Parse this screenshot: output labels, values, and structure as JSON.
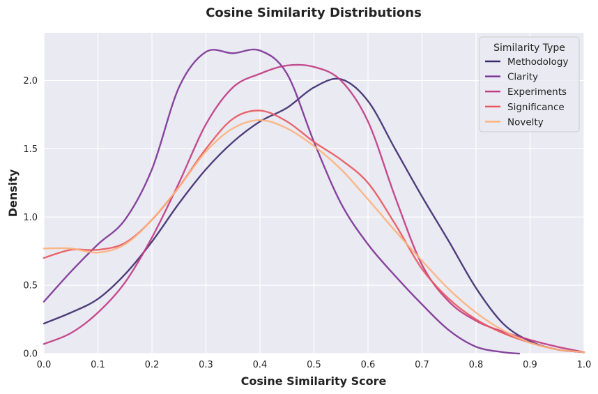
{
  "chart_data": {
    "type": "line",
    "title": "Cosine Similarity Distributions",
    "xlabel": "Cosine Similarity Score",
    "ylabel": "Density",
    "xlim": [
      0.0,
      1.0
    ],
    "ylim": [
      0.0,
      2.35
    ],
    "xticks": [
      "0.0",
      "0.1",
      "0.2",
      "0.3",
      "0.4",
      "0.5",
      "0.6",
      "0.7",
      "0.8",
      "0.9",
      "1.0"
    ],
    "xtick_values": [
      0.0,
      0.1,
      0.2,
      0.3,
      0.4,
      0.5,
      0.6,
      0.7,
      0.8,
      0.9,
      1.0
    ],
    "yticks": [
      "0.0",
      "0.5",
      "1.0",
      "1.5",
      "2.0"
    ],
    "ytick_values": [
      0.0,
      0.5,
      1.0,
      1.5,
      2.0
    ],
    "grid": true,
    "background": "#eaeaf2",
    "legend": {
      "title": "Similarity Type",
      "placement": "top-right"
    },
    "series": [
      {
        "name": "Methodology",
        "color": "#3d2a6e",
        "x": [
          0.0,
          0.05,
          0.1,
          0.15,
          0.2,
          0.25,
          0.3,
          0.35,
          0.4,
          0.45,
          0.5,
          0.55,
          0.6,
          0.65,
          0.7,
          0.75,
          0.8,
          0.85,
          0.9,
          0.95,
          1.0
        ],
        "y": [
          0.22,
          0.3,
          0.4,
          0.58,
          0.82,
          1.1,
          1.35,
          1.55,
          1.7,
          1.8,
          1.95,
          2.01,
          1.85,
          1.5,
          1.15,
          0.82,
          0.48,
          0.22,
          0.09,
          0.03,
          0.01
        ]
      },
      {
        "name": "Clarity",
        "color": "#7b3294",
        "x": [
          0.0,
          0.05,
          0.1,
          0.15,
          0.2,
          0.25,
          0.3,
          0.35,
          0.4,
          0.45,
          0.5,
          0.55,
          0.6,
          0.65,
          0.7,
          0.75,
          0.8,
          0.85,
          0.88
        ],
        "y": [
          0.38,
          0.6,
          0.8,
          0.98,
          1.35,
          1.95,
          2.21,
          2.2,
          2.22,
          2.05,
          1.55,
          1.1,
          0.8,
          0.57,
          0.36,
          0.17,
          0.05,
          0.01,
          0.0
        ]
      },
      {
        "name": "Experiments",
        "color": "#c03a83",
        "x": [
          0.0,
          0.05,
          0.1,
          0.15,
          0.2,
          0.25,
          0.3,
          0.35,
          0.4,
          0.45,
          0.5,
          0.55,
          0.6,
          0.65,
          0.7,
          0.75,
          0.8,
          0.85,
          0.9,
          0.95,
          1.0
        ],
        "y": [
          0.07,
          0.15,
          0.3,
          0.52,
          0.85,
          1.25,
          1.68,
          1.95,
          2.05,
          2.11,
          2.1,
          2.0,
          1.7,
          1.15,
          0.65,
          0.38,
          0.24,
          0.16,
          0.1,
          0.05,
          0.01
        ]
      },
      {
        "name": "Significance",
        "color": "#e8575d",
        "x": [
          0.0,
          0.05,
          0.1,
          0.15,
          0.2,
          0.25,
          0.3,
          0.35,
          0.4,
          0.45,
          0.5,
          0.55,
          0.6,
          0.65,
          0.7,
          0.75,
          0.8,
          0.85,
          0.9,
          0.95,
          1.0
        ],
        "y": [
          0.7,
          0.76,
          0.76,
          0.81,
          0.98,
          1.22,
          1.5,
          1.72,
          1.78,
          1.7,
          1.55,
          1.42,
          1.25,
          0.95,
          0.62,
          0.4,
          0.25,
          0.15,
          0.08,
          0.03,
          0.01
        ]
      },
      {
        "name": "Novelty",
        "color": "#fdb07a",
        "x": [
          0.0,
          0.05,
          0.1,
          0.15,
          0.2,
          0.25,
          0.3,
          0.35,
          0.4,
          0.45,
          0.5,
          0.55,
          0.6,
          0.65,
          0.7,
          0.75,
          0.8,
          0.85,
          0.9,
          0.95,
          1.0
        ],
        "y": [
          0.77,
          0.77,
          0.74,
          0.8,
          0.98,
          1.22,
          1.48,
          1.65,
          1.71,
          1.65,
          1.52,
          1.35,
          1.13,
          0.9,
          0.68,
          0.47,
          0.3,
          0.17,
          0.08,
          0.03,
          0.01
        ]
      }
    ]
  }
}
